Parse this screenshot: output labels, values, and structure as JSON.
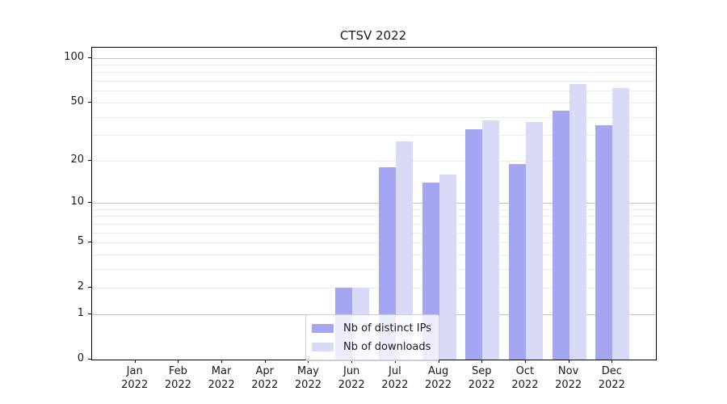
{
  "chart_data": {
    "type": "bar",
    "title": "CTSV 2022",
    "categories": [
      "Jan",
      "Feb",
      "Mar",
      "Apr",
      "May",
      "Jun",
      "Jul",
      "Aug",
      "Sep",
      "Oct",
      "Nov",
      "Dec"
    ],
    "year_label": "2022",
    "series": [
      {
        "name": "Nb of distinct IPs",
        "color": "#a5a6f2",
        "values": [
          0,
          0,
          0,
          0,
          0,
          2,
          18,
          14,
          33,
          19,
          44,
          35
        ]
      },
      {
        "name": "Nb of downloads",
        "color": "#d9daf8",
        "values": [
          0,
          0,
          0,
          0,
          0,
          2,
          27,
          16,
          38,
          37,
          67,
          63
        ]
      }
    ],
    "yscale": "log1p",
    "ylim": [
      0,
      117
    ],
    "y_ticks": [
      0,
      1,
      2,
      5,
      10,
      20,
      50,
      100
    ],
    "y_major_grid": [
      1,
      10,
      100
    ],
    "y_minor_grid": [
      2,
      3,
      4,
      5,
      6,
      7,
      8,
      9,
      20,
      30,
      40,
      50,
      60,
      70,
      80,
      90
    ],
    "grid": true,
    "legend_position": "lower center",
    "legend_labels": [
      "Nb of distinct IPs",
      "Nb of downloads"
    ]
  },
  "colors": {
    "bar_dark": "#a5a6f2",
    "bar_light": "#d9daf8",
    "grid_major": "#c2c2c2",
    "grid_minor": "#ebebeb",
    "spine": "#000000",
    "text": "#191919"
  }
}
